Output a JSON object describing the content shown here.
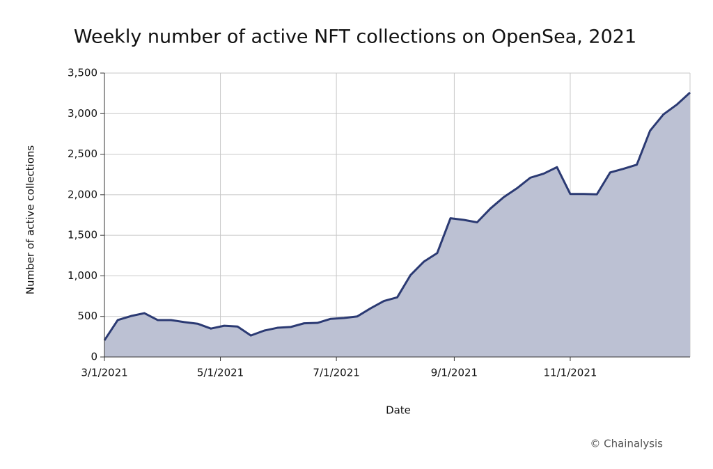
{
  "chart_data": {
    "type": "area",
    "title": "Weekly number of active NFT collections on OpenSea, 2021",
    "x_label": "Date",
    "y_label": "Number of active collections",
    "source": "© Chainalysis",
    "x": [
      "2021-03-01",
      "2021-03-08",
      "2021-03-15",
      "2021-03-22",
      "2021-03-29",
      "2021-04-05",
      "2021-04-12",
      "2021-04-19",
      "2021-04-26",
      "2021-05-03",
      "2021-05-10",
      "2021-05-17",
      "2021-05-24",
      "2021-05-31",
      "2021-06-07",
      "2021-06-14",
      "2021-06-21",
      "2021-06-28",
      "2021-07-05",
      "2021-07-12",
      "2021-07-19",
      "2021-07-26",
      "2021-08-02",
      "2021-08-09",
      "2021-08-16",
      "2021-08-23",
      "2021-08-30",
      "2021-09-06",
      "2021-09-13",
      "2021-09-20",
      "2021-09-27",
      "2021-10-04",
      "2021-10-11",
      "2021-10-18",
      "2021-10-25",
      "2021-11-01",
      "2021-11-08",
      "2021-11-15",
      "2021-11-22",
      "2021-11-29",
      "2021-12-06",
      "2021-12-13",
      "2021-12-20",
      "2021-12-27",
      "2022-01-03"
    ],
    "series": [
      {
        "name": "Active collections",
        "color": "#2b3a73",
        "fill": "#bcc1d3",
        "values": [
          205,
          455,
          505,
          540,
          455,
          455,
          430,
          410,
          350,
          385,
          375,
          265,
          325,
          360,
          370,
          415,
          420,
          470,
          480,
          500,
          600,
          690,
          735,
          1010,
          1175,
          1280,
          1710,
          1690,
          1660,
          1830,
          1970,
          2080,
          2210,
          2260,
          2340,
          2010,
          2010,
          2005,
          2275,
          2320,
          2370,
          2790,
          2990,
          3110,
          3260
        ]
      }
    ],
    "xlim": [
      "2021-03-01",
      "2022-01-03"
    ],
    "xticks": [
      {
        "value": "2021-03-01",
        "label": "3/1/2021"
      },
      {
        "value": "2021-05-01",
        "label": "5/1/2021"
      },
      {
        "value": "2021-07-01",
        "label": "7/1/2021"
      },
      {
        "value": "2021-09-01",
        "label": "9/1/2021"
      },
      {
        "value": "2021-11-01",
        "label": "11/1/2021"
      }
    ],
    "ylim": [
      0,
      3500
    ],
    "yticks": [
      0,
      500,
      {
        "value": 1000,
        "label": "1,000"
      },
      {
        "value": 1500,
        "label": "1,500"
      },
      {
        "value": 2000,
        "label": "2,000"
      },
      {
        "value": 2500,
        "label": "2,500"
      },
      {
        "value": 3000,
        "label": "3,000"
      },
      {
        "value": 3500,
        "label": "3,500"
      }
    ],
    "grid": true
  }
}
